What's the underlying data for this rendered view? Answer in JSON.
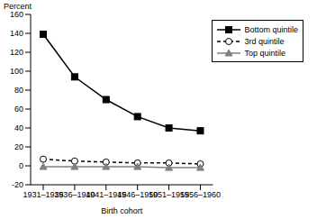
{
  "chart_data": {
    "type": "line",
    "y_label": "Percent",
    "x_label": "Birth cohort",
    "categories": [
      "1931–1935",
      "1936–1940",
      "1941–1945",
      "1946–1950",
      "1951–1955",
      "1956–1960"
    ],
    "series": [
      {
        "name": "Bottom quintile",
        "color": "#000000",
        "marker": "square",
        "line_style": "solid",
        "values": [
          139,
          94,
          70,
          52,
          40,
          37
        ]
      },
      {
        "name": "3rd quintile",
        "color": "#000000",
        "marker": "circle",
        "line_style": "dashed",
        "values": [
          7,
          5,
          4,
          3,
          3,
          2
        ]
      },
      {
        "name": "Top quintile",
        "color": "#808080",
        "marker": "triangle",
        "line_style": "solid",
        "values": [
          -1,
          -1,
          -1,
          -1,
          -2,
          -2
        ]
      }
    ],
    "ylim": [
      -20,
      160
    ],
    "yticks": [
      -20,
      0,
      20,
      40,
      60,
      80,
      100,
      120,
      140,
      160
    ],
    "grid": false,
    "legend": "upper right"
  }
}
